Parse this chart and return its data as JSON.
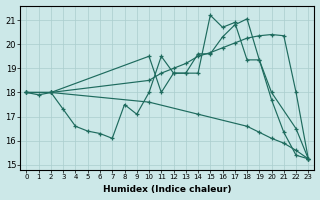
{
  "xlabel": "Humidex (Indice chaleur)",
  "xlim": [
    -0.5,
    23.5
  ],
  "ylim": [
    14.8,
    21.6
  ],
  "yticks": [
    15,
    16,
    17,
    18,
    19,
    20,
    21
  ],
  "xticks": [
    0,
    1,
    2,
    3,
    4,
    5,
    6,
    7,
    8,
    9,
    10,
    11,
    12,
    13,
    14,
    15,
    16,
    17,
    18,
    19,
    20,
    21,
    22,
    23
  ],
  "bg_color": "#cce8e8",
  "line_color": "#1e6b5e",
  "grid_color": "#aacece",
  "lines": [
    {
      "x": [
        0,
        1,
        2,
        3,
        4,
        5,
        6,
        7,
        8,
        9,
        10,
        11,
        12,
        13,
        14,
        15,
        16,
        17,
        18,
        19,
        20,
        21,
        22,
        23
      ],
      "y": [
        18,
        17.9,
        18,
        17.3,
        16.6,
        16.4,
        16.3,
        16.1,
        17.5,
        17.1,
        18.0,
        19.5,
        18.8,
        18.8,
        19.6,
        19.6,
        20.3,
        20.8,
        21.05,
        19.35,
        17.7,
        16.35,
        15.4,
        15.25
      ]
    },
    {
      "x": [
        0,
        2,
        10,
        11,
        12,
        13,
        14,
        15,
        16,
        17,
        18,
        19,
        20,
        21,
        22,
        23
      ],
      "y": [
        18,
        18,
        18.5,
        18.8,
        19.0,
        19.2,
        19.5,
        19.65,
        19.85,
        20.05,
        20.25,
        20.35,
        20.4,
        20.35,
        18.0,
        15.25
      ]
    },
    {
      "x": [
        0,
        2,
        10,
        11,
        12,
        13,
        14,
        15,
        16,
        17,
        18,
        19,
        20,
        22,
        23
      ],
      "y": [
        18,
        18,
        19.5,
        18.0,
        18.8,
        18.8,
        18.8,
        21.2,
        20.7,
        20.9,
        19.35,
        19.35,
        18.0,
        16.5,
        15.25
      ]
    },
    {
      "x": [
        0,
        2,
        10,
        14,
        18,
        19,
        20,
        21,
        22,
        23
      ],
      "y": [
        18,
        18,
        17.6,
        17.1,
        16.6,
        16.35,
        16.1,
        15.9,
        15.6,
        15.25
      ]
    }
  ]
}
